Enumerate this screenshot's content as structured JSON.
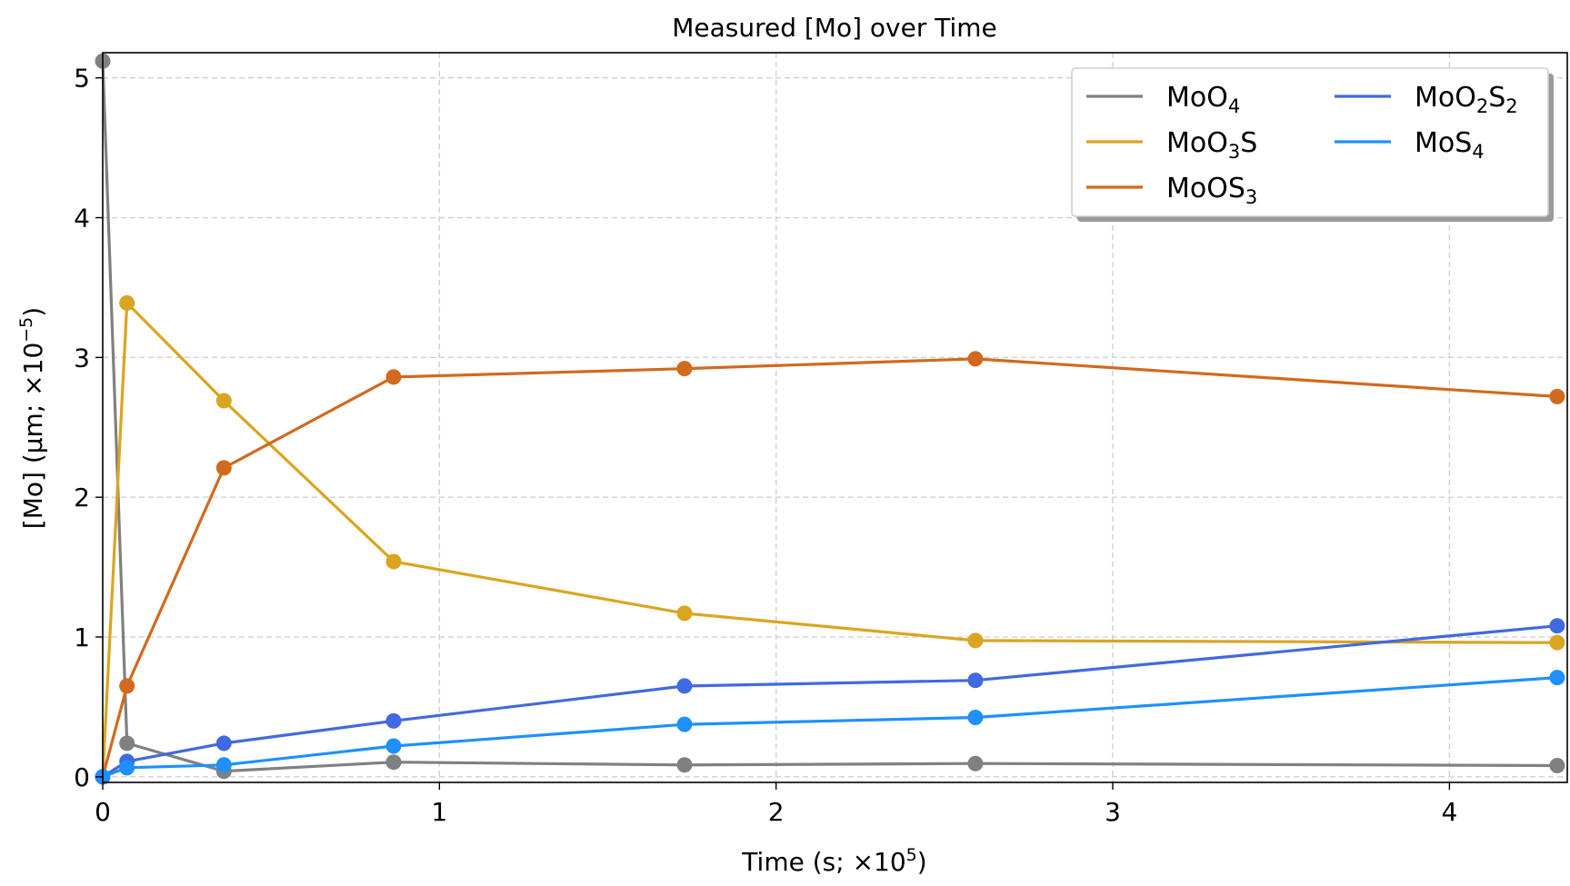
{
  "chart_data": {
    "type": "line",
    "title": "Measured [Mo] over Time",
    "xlabel": "Time (s; ×10",
    "xlabel_exp": "5",
    "xlabel_close": ")",
    "ylabel": "[Mo] (μm; ×10",
    "ylabel_exp": "−5",
    "ylabel_close": ")",
    "xlim": [
      0,
      4.35
    ],
    "ylim": [
      -0.04,
      5.18
    ],
    "xticks": [
      0,
      1,
      2,
      3,
      4
    ],
    "xtick_labels": [
      "0",
      "1",
      "2",
      "3",
      "4"
    ],
    "yticks": [
      0,
      1,
      2,
      3,
      4,
      5
    ],
    "ytick_labels": [
      "0",
      "1",
      "2",
      "3",
      "4",
      "5"
    ],
    "grid": true,
    "legend_position": "top-right",
    "x": [
      0,
      0.072,
      0.36,
      0.864,
      1.728,
      2.592,
      4.32
    ],
    "series": [
      {
        "name": "MoO4",
        "label_parts": [
          {
            "t": "MoO",
            "sub": false
          },
          {
            "t": "4",
            "sub": true
          }
        ],
        "color": "#808080",
        "values": [
          5.12,
          0.24,
          0.04,
          0.105,
          0.085,
          0.095,
          0.08
        ]
      },
      {
        "name": "MoO3S",
        "label_parts": [
          {
            "t": "MoO",
            "sub": false
          },
          {
            "t": "3",
            "sub": true
          },
          {
            "t": "S",
            "sub": false
          }
        ],
        "color": "#DAA520",
        "values": [
          0.0,
          3.39,
          2.69,
          1.54,
          1.17,
          0.975,
          0.96
        ]
      },
      {
        "name": "MoOS3",
        "label_parts": [
          {
            "t": "MoOS",
            "sub": false
          },
          {
            "t": "3",
            "sub": true
          }
        ],
        "color": "#D2691E",
        "values": [
          0.0,
          0.65,
          2.21,
          2.86,
          2.92,
          2.99,
          2.72
        ]
      },
      {
        "name": "MoO2S2",
        "label_parts": [
          {
            "t": "MoO",
            "sub": false
          },
          {
            "t": "2",
            "sub": true
          },
          {
            "t": "S",
            "sub": false
          },
          {
            "t": "2",
            "sub": true
          }
        ],
        "color": "#4169E1",
        "values": [
          0.0,
          0.11,
          0.24,
          0.4,
          0.65,
          0.69,
          1.08
        ]
      },
      {
        "name": "MoS4",
        "label_parts": [
          {
            "t": "MoS",
            "sub": false
          },
          {
            "t": "4",
            "sub": true
          }
        ],
        "color": "#1E90FF",
        "values": [
          0.0,
          0.065,
          0.085,
          0.22,
          0.375,
          0.425,
          0.71
        ]
      }
    ]
  }
}
